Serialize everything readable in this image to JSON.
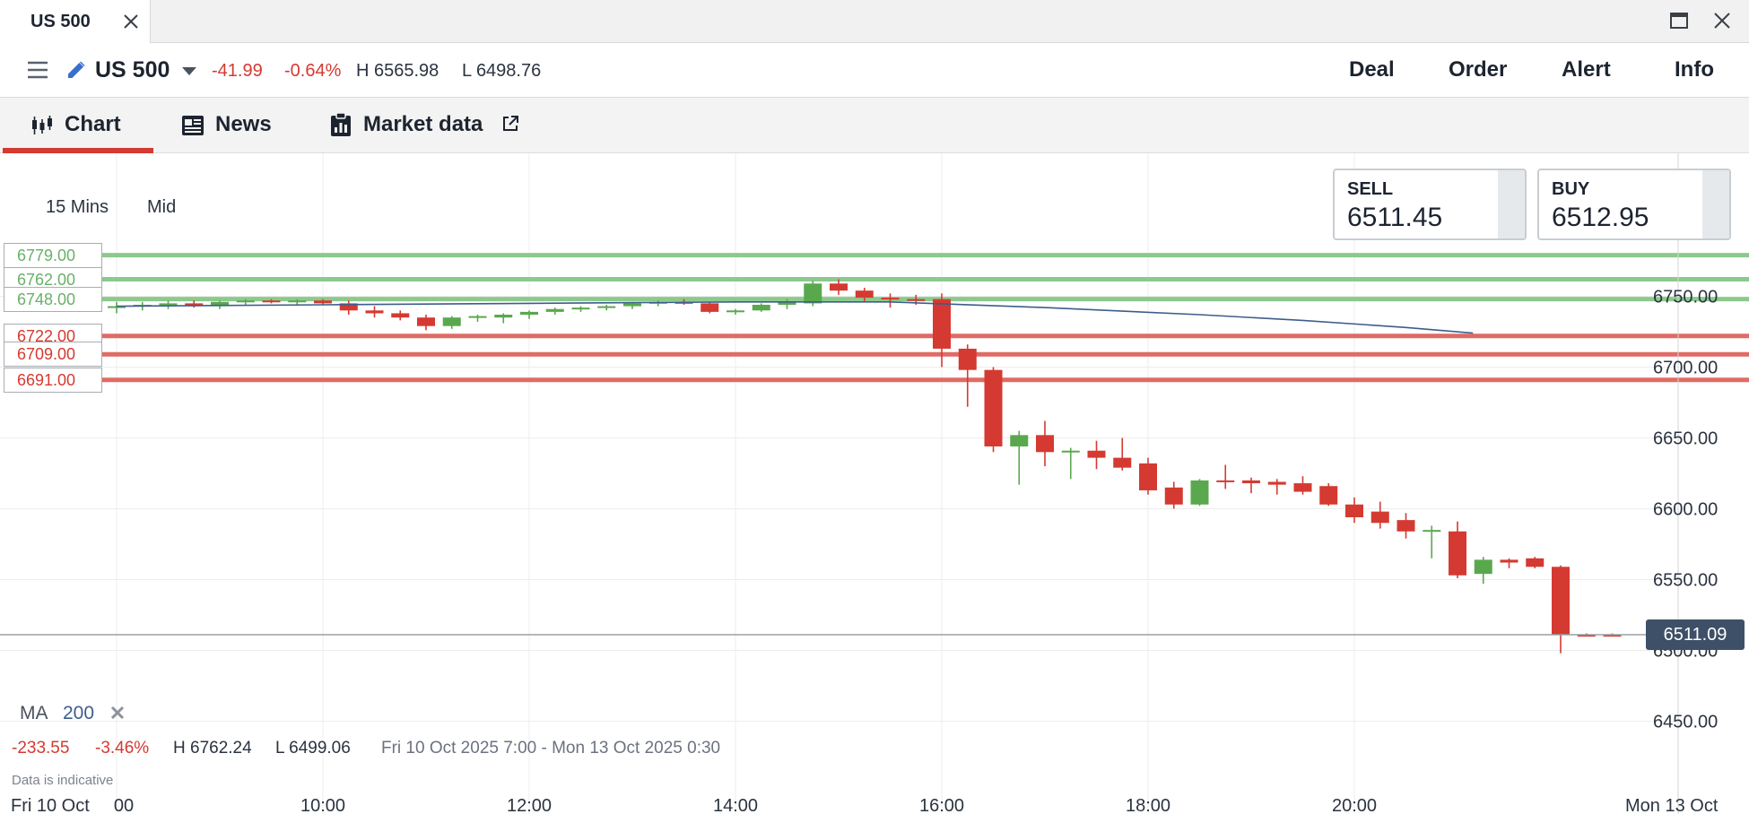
{
  "window": {
    "tab_title": "US 500"
  },
  "header": {
    "instrument": "US 500",
    "change": "-41.99",
    "change_pct": "-0.64%",
    "high": "H 6565.98",
    "low": "L 6498.76",
    "actions": {
      "deal": "Deal",
      "order": "Order",
      "alert": "Alert",
      "info": "Info"
    }
  },
  "tabs": {
    "chart": "Chart",
    "news": "News",
    "market_data": "Market data"
  },
  "chart_controls": {
    "timeframe": "15 Mins",
    "price_type": "Mid"
  },
  "quotes": {
    "sell_label": "SELL",
    "sell_value": "6511.45",
    "buy_label": "BUY",
    "buy_value": "6512.95"
  },
  "levels": {
    "l1": "6779.00",
    "l2": "6762.00",
    "l3": "6748.00",
    "l4": "6722.00",
    "l5": "6709.00",
    "l6": "6691.00"
  },
  "indicator": {
    "name": "MA",
    "period": "200"
  },
  "summary": {
    "change": "-233.55",
    "change_pct": "-3.46%",
    "high": "H 6762.24",
    "low": "L 6499.06",
    "range": "Fri 10 Oct 2025 7:00 - Mon 13 Oct 2025 0:30"
  },
  "disclaimer": "Data is indicative",
  "last_price": "6511.09",
  "colors": {
    "up": "#5aa84e",
    "down": "#d43a31",
    "ma_line": "#3e5d8c",
    "resistance": "#8cc98c",
    "support": "#e06a65"
  },
  "chart_data": {
    "type": "candlestick",
    "instrument": "US 500",
    "interval": "15 Mins",
    "price_axis_ticks": [
      6750,
      6700,
      6650,
      6600,
      6550,
      6500,
      6450
    ],
    "time_axis_ticks": [
      "Fri 10 Oct",
      "00",
      "10:00",
      "12:00",
      "14:00",
      "16:00",
      "18:00",
      "20:00",
      "Mon 13 Oct"
    ],
    "ylim": [
      6440,
      6800
    ],
    "horizontal_levels": [
      {
        "value": 6779,
        "kind": "resistance"
      },
      {
        "value": 6762,
        "kind": "resistance"
      },
      {
        "value": 6748,
        "kind": "resistance"
      },
      {
        "value": 6722,
        "kind": "support"
      },
      {
        "value": 6709,
        "kind": "support"
      },
      {
        "value": 6691,
        "kind": "support"
      }
    ],
    "last_price": 6511.09,
    "moving_average": {
      "period": 200,
      "points": [
        [
          8.0,
          6743
        ],
        [
          10.0,
          6744
        ],
        [
          12.0,
          6745
        ],
        [
          14.0,
          6746
        ],
        [
          15.5,
          6746
        ],
        [
          17.0,
          6742
        ],
        [
          18.5,
          6737
        ],
        [
          19.5,
          6733
        ],
        [
          20.5,
          6728
        ],
        [
          21.15,
          6724
        ]
      ]
    },
    "candles": [
      {
        "t": 8.0,
        "o": 6742,
        "h": 6746,
        "l": 6738,
        "c": 6743
      },
      {
        "t": 8.25,
        "o": 6743,
        "h": 6746,
        "l": 6740,
        "c": 6744
      },
      {
        "t": 8.5,
        "o": 6744,
        "h": 6747,
        "l": 6741,
        "c": 6745
      },
      {
        "t": 8.75,
        "o": 6745,
        "h": 6747,
        "l": 6742,
        "c": 6743
      },
      {
        "t": 9.0,
        "o": 6743,
        "h": 6747,
        "l": 6741,
        "c": 6746
      },
      {
        "t": 9.25,
        "o": 6746,
        "h": 6748,
        "l": 6744,
        "c": 6747
      },
      {
        "t": 9.5,
        "o": 6747,
        "h": 6748,
        "l": 6745,
        "c": 6746
      },
      {
        "t": 9.75,
        "o": 6746,
        "h": 6748,
        "l": 6744,
        "c": 6747
      },
      {
        "t": 10.0,
        "o": 6747,
        "h": 6748,
        "l": 6744,
        "c": 6745
      },
      {
        "t": 10.25,
        "o": 6745,
        "h": 6747,
        "l": 6737,
        "c": 6740
      },
      {
        "t": 10.5,
        "o": 6740,
        "h": 6743,
        "l": 6735,
        "c": 6738
      },
      {
        "t": 10.75,
        "o": 6738,
        "h": 6740,
        "l": 6733,
        "c": 6735
      },
      {
        "t": 11.0,
        "o": 6735,
        "h": 6737,
        "l": 6726,
        "c": 6729
      },
      {
        "t": 11.25,
        "o": 6729,
        "h": 6736,
        "l": 6727,
        "c": 6735
      },
      {
        "t": 11.5,
        "o": 6735,
        "h": 6737,
        "l": 6732,
        "c": 6736
      },
      {
        "t": 11.75,
        "o": 6735,
        "h": 6738,
        "l": 6731,
        "c": 6737
      },
      {
        "t": 12.0,
        "o": 6737,
        "h": 6740,
        "l": 6734,
        "c": 6739
      },
      {
        "t": 12.25,
        "o": 6739,
        "h": 6742,
        "l": 6737,
        "c": 6741
      },
      {
        "t": 12.5,
        "o": 6741,
        "h": 6743,
        "l": 6739,
        "c": 6742
      },
      {
        "t": 12.75,
        "o": 6742,
        "h": 6744,
        "l": 6740,
        "c": 6743
      },
      {
        "t": 13.0,
        "o": 6743,
        "h": 6746,
        "l": 6741,
        "c": 6745
      },
      {
        "t": 13.25,
        "o": 6745,
        "h": 6747,
        "l": 6743,
        "c": 6746
      },
      {
        "t": 13.5,
        "o": 6746,
        "h": 6748,
        "l": 6744,
        "c": 6745
      },
      {
        "t": 13.75,
        "o": 6745,
        "h": 6746,
        "l": 6738,
        "c": 6739
      },
      {
        "t": 14.0,
        "o": 6739,
        "h": 6741,
        "l": 6737,
        "c": 6740
      },
      {
        "t": 14.25,
        "o": 6740,
        "h": 6745,
        "l": 6739,
        "c": 6744
      },
      {
        "t": 14.5,
        "o": 6744,
        "h": 6748,
        "l": 6741,
        "c": 6746
      },
      {
        "t": 14.75,
        "o": 6745,
        "h": 6761,
        "l": 6743,
        "c": 6759
      },
      {
        "t": 15.0,
        "o": 6759,
        "h": 6762,
        "l": 6751,
        "c": 6754
      },
      {
        "t": 15.25,
        "o": 6754,
        "h": 6756,
        "l": 6746,
        "c": 6749
      },
      {
        "t": 15.5,
        "o": 6749,
        "h": 6752,
        "l": 6742,
        "c": 6748
      },
      {
        "t": 15.75,
        "o": 6748,
        "h": 6751,
        "l": 6744,
        "c": 6747
      },
      {
        "t": 16.0,
        "o": 6748,
        "h": 6752,
        "l": 6700,
        "c": 6713
      },
      {
        "t": 16.25,
        "o": 6713,
        "h": 6716,
        "l": 6672,
        "c": 6698
      },
      {
        "t": 16.5,
        "o": 6698,
        "h": 6700,
        "l": 6640,
        "c": 6644
      },
      {
        "t": 16.75,
        "o": 6644,
        "h": 6655,
        "l": 6617,
        "c": 6652
      },
      {
        "t": 17.0,
        "o": 6652,
        "h": 6662,
        "l": 6630,
        "c": 6640
      },
      {
        "t": 17.25,
        "o": 6640,
        "h": 6643,
        "l": 6621,
        "c": 6641
      },
      {
        "t": 17.5,
        "o": 6641,
        "h": 6648,
        "l": 6628,
        "c": 6636
      },
      {
        "t": 17.75,
        "o": 6636,
        "h": 6650,
        "l": 6627,
        "c": 6629
      },
      {
        "t": 18.0,
        "o": 6632,
        "h": 6636,
        "l": 6610,
        "c": 6613
      },
      {
        "t": 18.25,
        "o": 6615,
        "h": 6619,
        "l": 6600,
        "c": 6603
      },
      {
        "t": 18.5,
        "o": 6603,
        "h": 6621,
        "l": 6602,
        "c": 6620
      },
      {
        "t": 18.75,
        "o": 6620,
        "h": 6631,
        "l": 6614,
        "c": 6619
      },
      {
        "t": 19.0,
        "o": 6620,
        "h": 6622,
        "l": 6611,
        "c": 6618
      },
      {
        "t": 19.25,
        "o": 6619,
        "h": 6621,
        "l": 6610,
        "c": 6617
      },
      {
        "t": 19.5,
        "o": 6618,
        "h": 6623,
        "l": 6610,
        "c": 6612
      },
      {
        "t": 19.75,
        "o": 6616,
        "h": 6618,
        "l": 6602,
        "c": 6603
      },
      {
        "t": 20.0,
        "o": 6603,
        "h": 6608,
        "l": 6590,
        "c": 6594
      },
      {
        "t": 20.25,
        "o": 6598,
        "h": 6605,
        "l": 6586,
        "c": 6590
      },
      {
        "t": 20.5,
        "o": 6592,
        "h": 6597,
        "l": 6579,
        "c": 6584
      },
      {
        "t": 20.75,
        "o": 6584,
        "h": 6588,
        "l": 6565,
        "c": 6585
      },
      {
        "t": 21.0,
        "o": 6584,
        "h": 6591,
        "l": 6551,
        "c": 6553
      },
      {
        "t": 21.25,
        "o": 6554,
        "h": 6566,
        "l": 6547,
        "c": 6564
      },
      {
        "t": 21.5,
        "o": 6564,
        "h": 6565,
        "l": 6558,
        "c": 6562
      },
      {
        "t": 21.75,
        "o": 6565,
        "h": 6566,
        "l": 6558,
        "c": 6559
      },
      {
        "t": 22.0,
        "o": 6559,
        "h": 6560,
        "l": 6498,
        "c": 6511
      },
      {
        "t": 22.25,
        "o": 6511,
        "h": 6512,
        "l": 6510,
        "c": 6511
      },
      {
        "t": 22.5,
        "o": 6511,
        "h": 6512,
        "l": 6510,
        "c": 6511
      }
    ]
  }
}
